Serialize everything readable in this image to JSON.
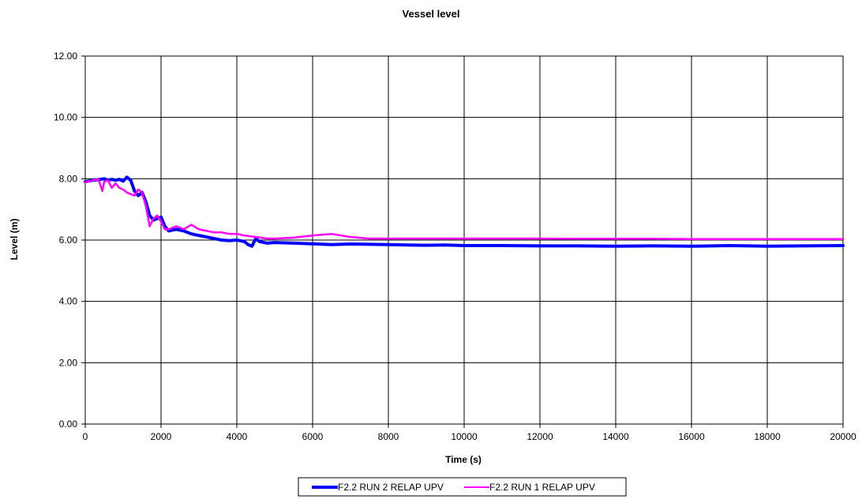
{
  "chart_data": {
    "type": "line",
    "title": "Vessel level",
    "xlabel": "Time (s)",
    "ylabel": "Level (m)",
    "xlim": [
      0,
      20000
    ],
    "ylim": [
      0,
      12
    ],
    "x_ticks": [
      "0",
      "2000",
      "4000",
      "6000",
      "8000",
      "10000",
      "12000",
      "14000",
      "16000",
      "18000",
      "20000"
    ],
    "y_ticks": [
      "0.00",
      "2.00",
      "4.00",
      "6.00",
      "8.00",
      "10.00",
      "12.00"
    ],
    "grid": true,
    "legend_position": "bottom",
    "series": [
      {
        "name": "F2.2 RUN 2 RELAP UPV",
        "color": "#0000ff",
        "x": [
          0,
          200,
          400,
          500,
          600,
          700,
          800,
          900,
          1000,
          1100,
          1200,
          1300,
          1400,
          1500,
          1600,
          1700,
          1800,
          1900,
          2000,
          2100,
          2200,
          2400,
          2600,
          2800,
          3000,
          3200,
          3400,
          3600,
          3800,
          4000,
          4200,
          4300,
          4400,
          4500,
          4600,
          4800,
          5000,
          5500,
          6000,
          6500,
          7000,
          7500,
          8000,
          8500,
          9000,
          9500,
          10000,
          11000,
          12000,
          13000,
          14000,
          15000,
          16000,
          17000,
          18000,
          19000,
          20000
        ],
        "y": [
          7.9,
          7.95,
          7.98,
          8.0,
          7.95,
          7.98,
          7.95,
          7.98,
          7.92,
          8.05,
          7.95,
          7.6,
          7.45,
          7.55,
          7.25,
          6.8,
          6.65,
          6.7,
          6.75,
          6.45,
          6.3,
          6.35,
          6.3,
          6.2,
          6.15,
          6.1,
          6.05,
          6.0,
          5.98,
          6.0,
          5.95,
          5.85,
          5.8,
          6.05,
          5.95,
          5.9,
          5.92,
          5.9,
          5.88,
          5.85,
          5.87,
          5.86,
          5.85,
          5.84,
          5.83,
          5.84,
          5.82,
          5.82,
          5.81,
          5.81,
          5.8,
          5.81,
          5.8,
          5.82,
          5.8,
          5.81,
          5.82
        ]
      },
      {
        "name": "F2.2 RUN 1 RELAP UPV",
        "color": "#ff00ff",
        "x": [
          0,
          200,
          350,
          450,
          500,
          600,
          700,
          800,
          900,
          1000,
          1100,
          1200,
          1300,
          1400,
          1500,
          1600,
          1700,
          1800,
          1900,
          2000,
          2100,
          2200,
          2400,
          2600,
          2800,
          3000,
          3200,
          3400,
          3600,
          3800,
          4000,
          4200,
          4500,
          4800,
          5000,
          5500,
          6000,
          6500,
          7000,
          7500,
          8000,
          8500,
          9000,
          9500,
          10000,
          11000,
          12000,
          13000,
          14000,
          15000,
          16000,
          17000,
          18000,
          19000,
          20000
        ],
        "y": [
          7.88,
          7.95,
          7.98,
          7.6,
          7.9,
          7.95,
          7.7,
          7.85,
          7.7,
          7.65,
          7.55,
          7.5,
          7.45,
          7.65,
          7.55,
          7.1,
          6.45,
          6.7,
          6.8,
          6.6,
          6.35,
          6.35,
          6.45,
          6.35,
          6.5,
          6.35,
          6.3,
          6.25,
          6.25,
          6.2,
          6.2,
          6.15,
          6.1,
          6.05,
          6.05,
          6.08,
          6.15,
          6.2,
          6.1,
          6.05,
          6.05,
          6.05,
          6.05,
          6.05,
          6.05,
          6.05,
          6.05,
          6.04,
          6.04,
          6.04,
          6.03,
          6.03,
          6.03,
          6.03,
          6.03
        ]
      }
    ]
  }
}
